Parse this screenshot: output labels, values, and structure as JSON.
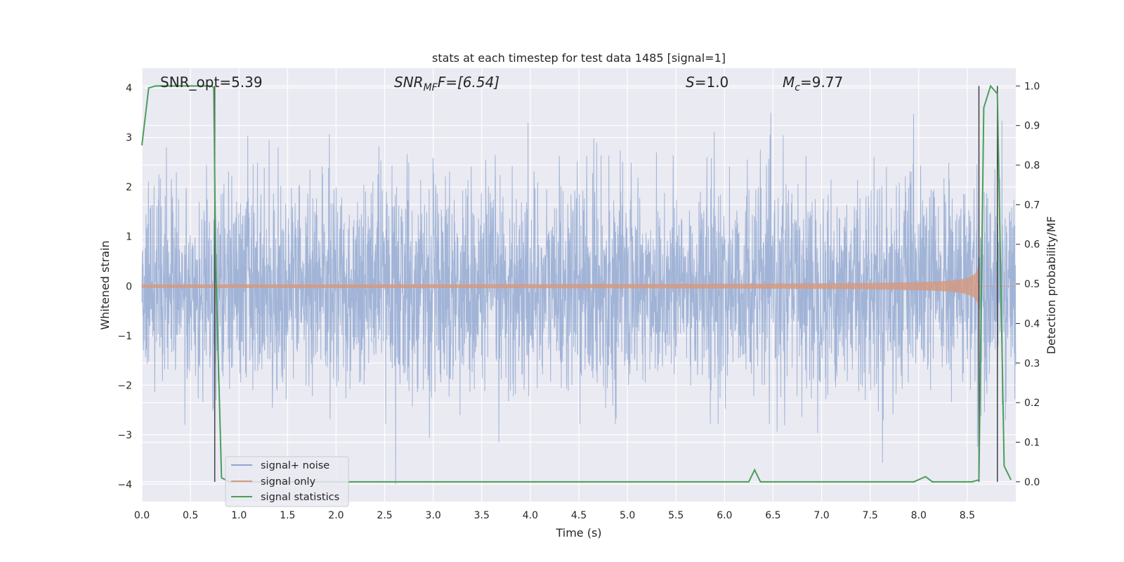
{
  "chart_data": {
    "type": "line",
    "title": "stats at each timestep for test data 1485 [signal=1]",
    "xlabel": "Time (s)",
    "ylabel": "Whitened strain",
    "y2label": "Detection probability/MF",
    "xlim": [
      0.0,
      9.0
    ],
    "ylim": [
      -4.35,
      4.4
    ],
    "y2lim": [
      -0.05,
      1.045
    ],
    "x_ticks": [
      0.0,
      0.5,
      1.0,
      1.5,
      2.0,
      2.5,
      3.0,
      3.5,
      4.0,
      4.5,
      5.0,
      5.5,
      6.0,
      6.5,
      7.0,
      7.5,
      8.0,
      8.5
    ],
    "x_tick_labels": [
      "0.0",
      "0.5",
      "1.0",
      "1.5",
      "2.0",
      "2.5",
      "3.0",
      "3.5",
      "4.0",
      "4.5",
      "5.0",
      "5.5",
      "6.0",
      "6.5",
      "7.0",
      "7.5",
      "8.0",
      "8.5"
    ],
    "y_ticks": [
      4,
      3,
      2,
      1,
      0,
      -1,
      -2,
      -3,
      -4
    ],
    "y_tick_labels": [
      "4",
      "3",
      "2",
      "1",
      "0",
      "−1",
      "−2",
      "−3",
      "−4"
    ],
    "y2_ticks": [
      1.0,
      0.9,
      0.8,
      0.7,
      0.6,
      0.5,
      0.4,
      0.3,
      0.2,
      0.1,
      0.0
    ],
    "y2_tick_labels": [
      "1.0",
      "0.9",
      "0.8",
      "0.7",
      "0.6",
      "0.5",
      "0.4",
      "0.3",
      "0.2",
      "0.1",
      "0.0"
    ],
    "grid": true,
    "legend_position": "lower-left",
    "annotations": {
      "snr_opt": "SNR_opt=5.39",
      "snr_mf_main": "SNR",
      "snr_mf_sub": "MF",
      "snr_mf_rest": "F=[6.54]",
      "s_label": "S",
      "s_value": "=1.0",
      "mc_main": "M",
      "mc_sub": "c",
      "mc_value": "=9.77"
    },
    "series": [
      {
        "name": "signal+ noise",
        "color": "#8fa6cf",
        "axis": "left",
        "kind": "noise",
        "description_range": [
          -4.0,
          3.5
        ]
      },
      {
        "name": "signal only",
        "color": "#d49a82",
        "axis": "left",
        "kind": "chirp",
        "x_start": 4.5,
        "x_peak": 8.62,
        "peak_amplitude": 0.45
      },
      {
        "name": "signal statistics",
        "color": "#4b9e5a",
        "axis": "right",
        "x": [
          0.0,
          0.07,
          0.14,
          0.72,
          0.74,
          0.76,
          0.82,
          0.9,
          6.25,
          6.31,
          6.37,
          6.42,
          7.95,
          8.07,
          8.14,
          8.55,
          8.62,
          8.67,
          8.74,
          8.81,
          8.88,
          8.95
        ],
        "y": [
          0.85,
          0.995,
          1.0,
          1.0,
          0.995,
          0.55,
          0.01,
          0.0,
          0.0,
          0.03,
          0.0,
          0.0,
          0.0,
          0.013,
          0.0,
          0.0,
          0.005,
          0.945,
          1.0,
          0.98,
          0.04,
          0.005
        ]
      }
    ],
    "vertical_lines": [
      0.75,
      8.62,
      8.81
    ],
    "vertical_line_color": "#404040"
  }
}
